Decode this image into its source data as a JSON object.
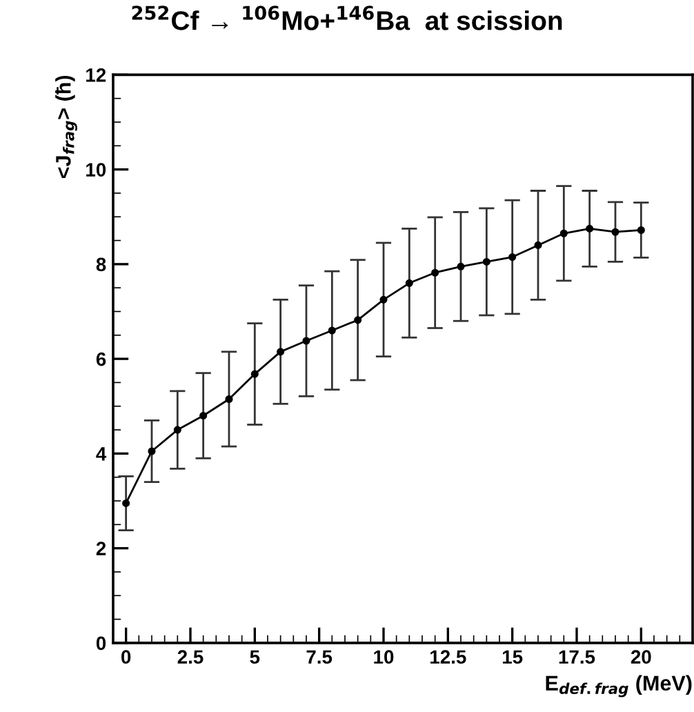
{
  "chart_data": {
    "type": "line",
    "title": "$^{252}$Cf → $^{106}$Mo+$^{146}$Ba  at scission",
    "xlabel": "E$_{def.frag}$ (MeV)",
    "ylabel": "<J$_{frag}$> (ħ)",
    "x": [
      0,
      1,
      2,
      3,
      4,
      5,
      6,
      7,
      8,
      9,
      10,
      11,
      12,
      13,
      14,
      15,
      16,
      17,
      18,
      19,
      20
    ],
    "series": [
      {
        "color": "#000000",
        "values": [
          2.95,
          4.05,
          4.5,
          4.8,
          5.15,
          5.68,
          6.15,
          6.38,
          6.6,
          6.82,
          7.25,
          7.6,
          7.82,
          7.95,
          8.05,
          8.15,
          8.4,
          8.65,
          8.75,
          8.68,
          8.72
        ],
        "errors": [
          0.57,
          0.65,
          0.82,
          0.9,
          1.0,
          1.07,
          1.1,
          1.17,
          1.25,
          1.27,
          1.2,
          1.15,
          1.17,
          1.15,
          1.13,
          1.2,
          1.15,
          1.0,
          0.8,
          0.63,
          0.58
        ]
      }
    ],
    "xlim": [
      -0.5,
      22
    ],
    "ylim": [
      0,
      12
    ],
    "xticks": [
      {
        "value": 0,
        "label": "0"
      },
      {
        "value": 2.5,
        "label": "2.5"
      },
      {
        "value": 5,
        "label": "5"
      },
      {
        "value": 7.5,
        "label": "7.5"
      },
      {
        "value": 10,
        "label": "10"
      },
      {
        "value": 12.5,
        "label": "12.5"
      },
      {
        "value": 15,
        "label": "15"
      },
      {
        "value": 17.5,
        "label": "17.5"
      },
      {
        "value": 20,
        "label": "20"
      }
    ],
    "yticks": [
      0,
      2,
      4,
      6,
      8,
      10,
      12
    ],
    "grid": false,
    "marker": "circle",
    "line_style": "solid"
  }
}
